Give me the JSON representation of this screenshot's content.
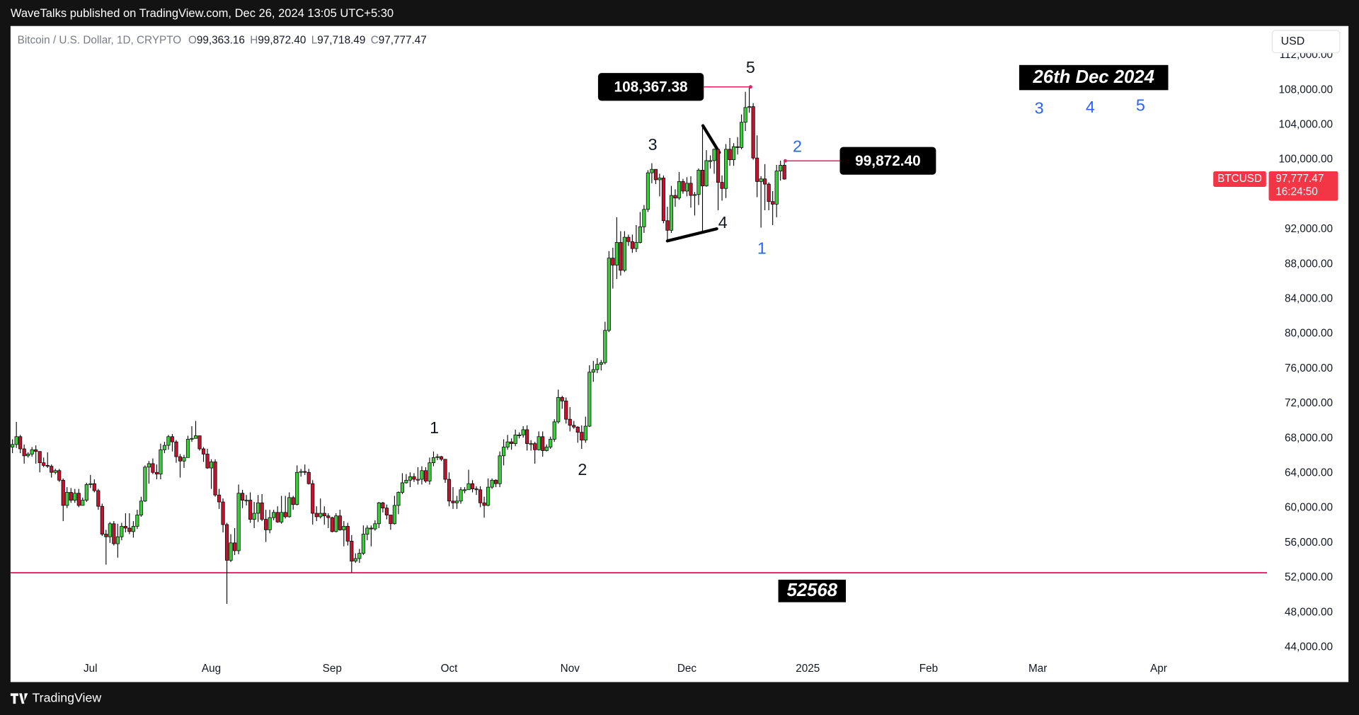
{
  "header": {
    "published": "WaveTalks published on TradingView.com, Dec 26, 2024 13:05 UTC+5:30",
    "footer": "TradingView",
    "currency_button": "USD"
  },
  "chart_data": {
    "type": "candlestick",
    "symbol": "Bitcoin / U.S. Dollar, 1D, CRYPTO",
    "legend": [
      {
        "key": "O",
        "value": "99,363.16"
      },
      {
        "key": "H",
        "value": "99,872.40"
      },
      {
        "key": "L",
        "value": "97,718.49"
      },
      {
        "key": "C",
        "value": "97,777.47"
      }
    ],
    "up_color": "#3dcc3d",
    "down_color": "#c4122f",
    "grid": false,
    "xlim": [
      -0.5,
      321.8
    ],
    "xticks": [
      {
        "value": 20,
        "label": "Jul"
      },
      {
        "value": 51,
        "label": "Aug"
      },
      {
        "value": 82,
        "label": "Sep"
      },
      {
        "value": 112,
        "label": "Oct"
      },
      {
        "value": 143,
        "label": "Nov"
      },
      {
        "value": 173,
        "label": "Dec"
      },
      {
        "value": 204,
        "label": "2025"
      },
      {
        "value": 235,
        "label": "Feb"
      },
      {
        "value": 263,
        "label": "Mar"
      },
      {
        "value": 294,
        "label": "Apr"
      }
    ],
    "ylim": [
      43000,
      115360
    ],
    "yticks": [
      {
        "value": 44000,
        "label": "44,000.00"
      },
      {
        "value": 48000,
        "label": "48,000.00"
      },
      {
        "value": 52000,
        "label": "52,000.00"
      },
      {
        "value": 56000,
        "label": "56,000.00"
      },
      {
        "value": 60000,
        "label": "60,000.00"
      },
      {
        "value": 64000,
        "label": "64,000.00"
      },
      {
        "value": 68000,
        "label": "68,000.00"
      },
      {
        "value": 72000,
        "label": "72,000.00"
      },
      {
        "value": 76000,
        "label": "76,000.00"
      },
      {
        "value": 80000,
        "label": "80,000.00"
      },
      {
        "value": 84000,
        "label": "84,000.00"
      },
      {
        "value": 88000,
        "label": "88,000.00"
      },
      {
        "value": 92000,
        "label": "92,000.00"
      },
      {
        "value": 96000,
        "label": "96,000.00"
      },
      {
        "value": 100000,
        "label": "100,000.00"
      },
      {
        "value": 104000,
        "label": "104,000.00"
      },
      {
        "value": 108000,
        "label": "108,000.00"
      },
      {
        "value": 112000,
        "label": "112,000.00"
      }
    ],
    "ohlc": [
      [
        67000,
        67900,
        66300,
        67300
      ],
      [
        67300,
        69900,
        66900,
        68200
      ],
      [
        68200,
        68400,
        66300,
        66800
      ],
      [
        66800,
        67300,
        65100,
        66000
      ],
      [
        66000,
        66400,
        65800,
        66200
      ],
      [
        66200,
        67000,
        65900,
        66700
      ],
      [
        66700,
        67200,
        65100,
        66500
      ],
      [
        66500,
        66500,
        64100,
        65200
      ],
      [
        65200,
        65800,
        64700,
        64900
      ],
      [
        64900,
        66400,
        64600,
        64800
      ],
      [
        64800,
        65000,
        63500,
        64100
      ],
      [
        64100,
        64500,
        63900,
        64300
      ],
      [
        64300,
        64500,
        63000,
        63200
      ],
      [
        63200,
        63400,
        58500,
        60300
      ],
      [
        60300,
        62400,
        60000,
        61800
      ],
      [
        61800,
        62300,
        60600,
        60900
      ],
      [
        60900,
        62200,
        60600,
        61700
      ],
      [
        61700,
        62200,
        60100,
        60300
      ],
      [
        60300,
        61200,
        60300,
        60900
      ],
      [
        60900,
        62900,
        60700,
        62700
      ],
      [
        62700,
        63800,
        62300,
        62800
      ],
      [
        62800,
        63300,
        61800,
        62000
      ],
      [
        62000,
        62200,
        59800,
        60200
      ],
      [
        60200,
        60500,
        56800,
        57000
      ],
      [
        57000,
        57500,
        53500,
        56700
      ],
      [
        56700,
        58400,
        56000,
        58200
      ],
      [
        58200,
        58500,
        55700,
        55900
      ],
      [
        55900,
        58200,
        54300,
        56700
      ],
      [
        56700,
        58300,
        56300,
        57900
      ],
      [
        57900,
        59400,
        57200,
        57700
      ],
      [
        57700,
        59400,
        57000,
        57300
      ],
      [
        57300,
        58500,
        56600,
        57900
      ],
      [
        57900,
        59800,
        57600,
        59200
      ],
      [
        59200,
        61300,
        59000,
        60800
      ],
      [
        60800,
        64900,
        60700,
        64700
      ],
      [
        64700,
        65400,
        62800,
        65100
      ],
      [
        65100,
        65700,
        63900,
        64100
      ],
      [
        64100,
        65000,
        63300,
        63900
      ],
      [
        63900,
        67400,
        63300,
        66700
      ],
      [
        66700,
        67600,
        66300,
        67200
      ],
      [
        67200,
        68400,
        66700,
        68200
      ],
      [
        68200,
        68500,
        66500,
        67600
      ],
      [
        67600,
        67800,
        65200,
        65900
      ],
      [
        65900,
        66200,
        63500,
        65400
      ],
      [
        65400,
        66100,
        64600,
        65800
      ],
      [
        65800,
        68300,
        65800,
        67900
      ],
      [
        67900,
        69400,
        67600,
        68000
      ],
      [
        68000,
        70000,
        68000,
        68300
      ],
      [
        68300,
        68300,
        66600,
        66800
      ],
      [
        66800,
        67000,
        65300,
        66200
      ],
      [
        66200,
        66800,
        64500,
        64600
      ],
      [
        64600,
        65600,
        62200,
        65300
      ],
      [
        65300,
        65600,
        61300,
        61500
      ],
      [
        61500,
        62200,
        59900,
        60700
      ],
      [
        60700,
        61100,
        57200,
        58100
      ],
      [
        58100,
        58300,
        49000,
        54000
      ],
      [
        54000,
        57000,
        53800,
        56000
      ],
      [
        56000,
        57700,
        54600,
        55100
      ],
      [
        55100,
        62700,
        54700,
        61700
      ],
      [
        61700,
        62100,
        60000,
        60900
      ],
      [
        60900,
        61500,
        60300,
        60900
      ],
      [
        60900,
        61800,
        58300,
        58700
      ],
      [
        58700,
        60700,
        57700,
        59400
      ],
      [
        59400,
        61500,
        58400,
        60600
      ],
      [
        60600,
        61600,
        58500,
        58700
      ],
      [
        58700,
        59800,
        56100,
        57500
      ],
      [
        57500,
        59800,
        57100,
        58900
      ],
      [
        58900,
        59800,
        58600,
        59500
      ],
      [
        59500,
        60200,
        58300,
        58400
      ],
      [
        58400,
        61400,
        58200,
        59500
      ],
      [
        59500,
        61400,
        58800,
        59000
      ],
      [
        59000,
        61800,
        58900,
        61200
      ],
      [
        61200,
        61400,
        59800,
        60400
      ],
      [
        60400,
        64900,
        60300,
        64100
      ],
      [
        64100,
        64500,
        63600,
        64200
      ],
      [
        64200,
        65000,
        63800,
        64100
      ],
      [
        64100,
        64500,
        62700,
        62800
      ],
      [
        62800,
        63200,
        58100,
        59400
      ],
      [
        59400,
        60200,
        58500,
        59000
      ],
      [
        59000,
        61100,
        58800,
        59400
      ],
      [
        59400,
        60200,
        58100,
        59100
      ],
      [
        59100,
        59400,
        57700,
        58900
      ],
      [
        58900,
        59000,
        57200,
        57300
      ],
      [
        57300,
        59400,
        57200,
        59100
      ],
      [
        59100,
        59800,
        57400,
        57500
      ],
      [
        57500,
        58500,
        55600,
        57900
      ],
      [
        57900,
        58300,
        55700,
        56200
      ],
      [
        56200,
        56900,
        52600,
        53900
      ],
      [
        53900,
        54800,
        53700,
        54200
      ],
      [
        54200,
        55300,
        53700,
        54800
      ],
      [
        54800,
        58000,
        54600,
        57000
      ],
      [
        57000,
        58000,
        56300,
        57700
      ],
      [
        57700,
        58000,
        55600,
        57600
      ],
      [
        57600,
        58600,
        57400,
        58200
      ],
      [
        58200,
        60700,
        57700,
        60600
      ],
      [
        60600,
        60700,
        59500,
        60000
      ],
      [
        60000,
        60400,
        58700,
        59200
      ],
      [
        59200,
        59200,
        57500,
        58200
      ],
      [
        58200,
        61400,
        58100,
        60300
      ],
      [
        60300,
        61900,
        59300,
        61800
      ],
      [
        61800,
        64000,
        61600,
        62900
      ],
      [
        62900,
        63900,
        62800,
        63200
      ],
      [
        63200,
        64100,
        62400,
        63600
      ],
      [
        63600,
        64000,
        63000,
        63300
      ],
      [
        63300,
        64700,
        62700,
        63300
      ],
      [
        63300,
        64800,
        62700,
        64300
      ],
      [
        64300,
        64700,
        62900,
        63100
      ],
      [
        63100,
        65800,
        62700,
        65200
      ],
      [
        65200,
        66500,
        64800,
        65800
      ],
      [
        65800,
        66200,
        65500,
        65900
      ],
      [
        65900,
        66000,
        65400,
        65600
      ],
      [
        65600,
        65600,
        62900,
        63300
      ],
      [
        63300,
        64100,
        60200,
        60800
      ],
      [
        60800,
        62400,
        59900,
        60600
      ],
      [
        60600,
        61400,
        59900,
        60800
      ],
      [
        60800,
        62400,
        60500,
        62100
      ],
      [
        62100,
        62400,
        61700,
        62100
      ],
      [
        62100,
        64400,
        62100,
        62800
      ],
      [
        62800,
        63200,
        61800,
        62200
      ],
      [
        62200,
        62500,
        61500,
        62100
      ],
      [
        62100,
        62500,
        60100,
        60600
      ],
      [
        60600,
        61300,
        58900,
        60300
      ],
      [
        60300,
        63400,
        60200,
        62400
      ],
      [
        62400,
        63400,
        62200,
        63200
      ],
      [
        63200,
        63300,
        62400,
        62800
      ],
      [
        62800,
        66500,
        62400,
        66000
      ],
      [
        66000,
        67900,
        64900,
        67000
      ],
      [
        67000,
        68400,
        66700,
        67600
      ],
      [
        67600,
        68000,
        66700,
        67400
      ],
      [
        67400,
        69000,
        67100,
        68400
      ],
      [
        68400,
        68700,
        68000,
        68400
      ],
      [
        68400,
        69400,
        68100,
        69000
      ],
      [
        69000,
        69500,
        66600,
        67400
      ],
      [
        67400,
        67800,
        66600,
        67400
      ],
      [
        67400,
        67600,
        65100,
        66700
      ],
      [
        66700,
        68800,
        66600,
        68200
      ],
      [
        68200,
        68800,
        65900,
        66600
      ],
      [
        66600,
        67300,
        66500,
        67000
      ],
      [
        67000,
        68200,
        66800,
        67900
      ],
      [
        67900,
        70200,
        67600,
        69900
      ],
      [
        69900,
        73600,
        69700,
        72700
      ],
      [
        72700,
        72900,
        71400,
        72300
      ],
      [
        72300,
        72700,
        69700,
        70200
      ],
      [
        70200,
        71600,
        68800,
        69500
      ],
      [
        69500,
        70000,
        69100,
        69300
      ],
      [
        69300,
        69400,
        67500,
        68700
      ],
      [
        68700,
        69500,
        66800,
        67800
      ],
      [
        67800,
        70500,
        67500,
        69400
      ],
      [
        69400,
        76400,
        69300,
        75600
      ],
      [
        75600,
        76900,
        74500,
        75900
      ],
      [
        75900,
        77200,
        75500,
        76500
      ],
      [
        76500,
        77000,
        75800,
        76700
      ],
      [
        76700,
        81400,
        76500,
        80400
      ],
      [
        80400,
        89500,
        80200,
        88700
      ],
      [
        88700,
        89900,
        85200,
        87900
      ],
      [
        87900,
        93400,
        86300,
        90500
      ],
      [
        90500,
        91800,
        86700,
        87300
      ],
      [
        87300,
        91800,
        87100,
        91100
      ],
      [
        91100,
        91400,
        90100,
        90600
      ],
      [
        90600,
        91400,
        89300,
        89800
      ],
      [
        89800,
        92500,
        89400,
        90500
      ],
      [
        90500,
        94000,
        90400,
        92300
      ],
      [
        92300,
        94800,
        91600,
        94300
      ],
      [
        94300,
        98800,
        94000,
        98500
      ],
      [
        98500,
        99600,
        97300,
        98900
      ],
      [
        98900,
        98900,
        97200,
        97700
      ],
      [
        97700,
        98400,
        95800,
        97900
      ],
      [
        97900,
        98200,
        92700,
        93000
      ],
      [
        93000,
        94600,
        90800,
        91900
      ],
      [
        91900,
        97000,
        91600,
        95900
      ],
      [
        95900,
        96600,
        94600,
        95600
      ],
      [
        95600,
        98600,
        95400,
        97500
      ],
      [
        97500,
        97800,
        96100,
        96400
      ],
      [
        96400,
        98000,
        95800,
        97300
      ],
      [
        97300,
        98100,
        94500,
        95900
      ],
      [
        95900,
        96300,
        93600,
        96000
      ],
      [
        96000,
        99000,
        94800,
        98800
      ],
      [
        98800,
        103900,
        91800,
        97000
      ],
      [
        97000,
        101100,
        96900,
        99900
      ],
      [
        99900,
        100500,
        99000,
        99900
      ],
      [
        99900,
        101300,
        98400,
        101200
      ],
      [
        101200,
        101300,
        94200,
        97400
      ],
      [
        97400,
        98200,
        95300,
        96700
      ],
      [
        96700,
        101800,
        95600,
        101200
      ],
      [
        101200,
        102500,
        99300,
        100000
      ],
      [
        100000,
        101900,
        99300,
        101500
      ],
      [
        101500,
        102600,
        100600,
        101400
      ],
      [
        101400,
        105200,
        101200,
        104300
      ],
      [
        104300,
        107800,
        103300,
        106000
      ],
      [
        106000,
        108367.38,
        105400,
        106100
      ],
      [
        106100,
        106500,
        100000,
        100200
      ],
      [
        100200,
        102800,
        95700,
        97500
      ],
      [
        97500,
        98100,
        92200,
        97800
      ],
      [
        97800,
        99500,
        94200,
        97200
      ],
      [
        97200,
        97400,
        94200,
        95200
      ],
      [
        95200,
        96400,
        92500,
        94900
      ],
      [
        94900,
        99400,
        93400,
        98700
      ],
      [
        98700,
        99900,
        97600,
        99363.16
      ],
      [
        99363.16,
        99872.4,
        97718.49,
        97777.47
      ]
    ],
    "price_labels": [
      {
        "value": 108367.38,
        "label": "108,367.38"
      },
      {
        "value": 99872.4,
        "label": "99,872.40"
      }
    ],
    "levels": [
      52568
    ],
    "level_color": "#e91e63",
    "last_price": {
      "value": 97777.47,
      "label": "97,777.47",
      "countdown": "16:24:50",
      "symbol": "BTCUSD"
    },
    "date_note": "26th Dec 2024",
    "wave_labels": [
      {
        "text": "1",
        "color": "#131722"
      },
      {
        "text": "2",
        "color": "#131722"
      },
      {
        "text": "3",
        "color": "#131722"
      },
      {
        "text": "4",
        "color": "#131722"
      },
      {
        "text": "5",
        "color": "#131722"
      },
      {
        "text": "1",
        "color": "#2962ff"
      },
      {
        "text": "2",
        "color": "#2962ff"
      },
      {
        "text": "3",
        "color": "#2962ff"
      },
      {
        "text": "4",
        "color": "#2962ff"
      },
      {
        "text": "5",
        "color": "#2962ff"
      }
    ]
  }
}
